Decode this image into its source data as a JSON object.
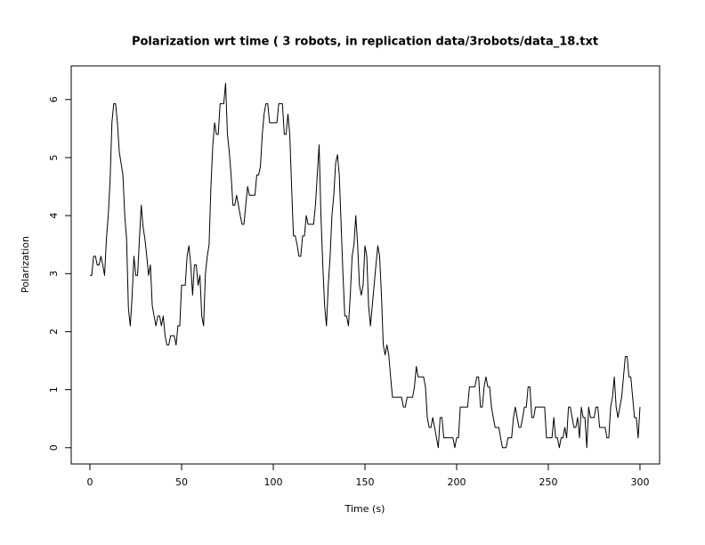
{
  "chart_data": {
    "type": "line",
    "title": "Polarization wrt time ( 3 robots, in replication  data/3robots/data_18.txt",
    "xlabel": "Time (s)",
    "ylabel": "Polarization",
    "x": [
      0,
      1,
      2,
      3,
      4,
      5,
      6,
      7,
      8,
      9,
      10,
      11,
      12,
      13,
      14,
      15,
      16,
      17,
      18,
      19,
      20,
      21,
      22,
      23,
      24,
      25,
      26,
      27,
      28,
      29,
      30,
      31,
      32,
      33,
      34,
      35,
      36,
      37,
      38,
      39,
      40,
      41,
      42,
      43,
      44,
      45,
      46,
      47,
      48,
      49,
      50,
      51,
      52,
      53,
      54,
      55,
      56,
      57,
      58,
      59,
      60,
      61,
      62,
      63,
      64,
      65,
      66,
      67,
      68,
      69,
      70,
      71,
      72,
      73,
      74,
      75,
      76,
      77,
      78,
      79,
      80,
      81,
      82,
      83,
      84,
      85,
      86,
      87,
      88,
      89,
      90,
      91,
      92,
      93,
      94,
      95,
      96,
      97,
      98,
      99,
      100,
      101,
      102,
      103,
      104,
      105,
      106,
      107,
      108,
      109,
      110,
      111,
      112,
      113,
      114,
      115,
      116,
      117,
      118,
      119,
      120,
      121,
      122,
      123,
      124,
      125,
      126,
      127,
      128,
      129,
      130,
      131,
      132,
      133,
      134,
      135,
      136,
      137,
      138,
      139,
      140,
      141,
      142,
      143,
      144,
      145,
      146,
      147,
      148,
      149,
      150,
      151,
      152,
      153,
      154,
      155,
      156,
      157,
      158,
      159,
      160,
      161,
      162,
      163,
      164,
      165,
      166,
      167,
      168,
      169,
      170,
      171,
      172,
      173,
      174,
      175,
      176,
      177,
      178,
      179,
      180,
      181,
      182,
      183,
      184,
      185,
      186,
      187,
      188,
      189,
      190,
      191,
      192,
      193,
      194,
      195,
      196,
      197,
      198,
      199,
      200,
      201,
      202,
      203,
      204,
      205,
      206,
      207,
      208,
      209,
      210,
      211,
      212,
      213,
      214,
      215,
      216,
      217,
      218,
      219,
      220,
      221,
      222,
      223,
      224,
      225,
      226,
      227,
      228,
      229,
      230,
      231,
      232,
      233,
      234,
      235,
      236,
      237,
      238,
      239,
      240,
      241,
      242,
      243,
      244,
      245,
      246,
      247,
      248,
      249,
      250,
      251,
      252,
      253,
      254,
      255,
      256,
      257,
      258,
      259,
      260,
      261,
      262,
      263,
      264,
      265,
      266,
      267,
      268,
      269,
      270,
      271,
      272,
      273,
      274,
      275,
      276,
      277,
      278,
      279,
      280,
      281,
      282,
      283,
      284,
      285,
      286,
      287,
      288,
      289,
      290,
      291,
      292,
      293,
      294,
      295,
      296,
      297,
      298,
      299,
      300
    ],
    "series": [
      {
        "color": "#000000",
        "values": [
          2.97,
          2.97,
          3.3,
          3.3,
          3.15,
          3.15,
          3.3,
          3.15,
          2.97,
          3.6,
          4.0,
          4.6,
          5.6,
          5.93,
          5.93,
          5.6,
          5.1,
          4.9,
          4.7,
          4.0,
          3.6,
          2.4,
          2.1,
          2.6,
          3.3,
          2.97,
          2.97,
          3.6,
          4.18,
          3.8,
          3.6,
          3.3,
          2.97,
          3.15,
          2.45,
          2.27,
          2.1,
          2.27,
          2.27,
          2.1,
          2.27,
          1.93,
          1.77,
          1.77,
          1.93,
          1.93,
          1.93,
          1.77,
          2.1,
          2.1,
          2.8,
          2.8,
          2.8,
          3.3,
          3.48,
          3.15,
          2.63,
          3.15,
          3.15,
          2.8,
          2.97,
          2.27,
          2.1,
          3.0,
          3.3,
          3.5,
          4.5,
          5.2,
          5.6,
          5.4,
          5.4,
          5.93,
          5.93,
          5.93,
          6.28,
          5.4,
          5.1,
          4.7,
          4.18,
          4.18,
          4.35,
          4.18,
          4.0,
          3.85,
          3.85,
          4.18,
          4.5,
          4.35,
          4.35,
          4.35,
          4.35,
          4.7,
          4.7,
          4.85,
          5.4,
          5.75,
          5.93,
          5.93,
          5.6,
          5.6,
          5.6,
          5.6,
          5.6,
          5.93,
          5.93,
          5.93,
          5.4,
          5.4,
          5.75,
          5.4,
          4.5,
          3.65,
          3.65,
          3.5,
          3.3,
          3.3,
          3.65,
          3.65,
          4.0,
          3.85,
          3.85,
          3.85,
          3.85,
          4.18,
          4.7,
          5.22,
          4.0,
          3.15,
          2.45,
          2.1,
          2.8,
          3.3,
          4.0,
          4.35,
          4.9,
          5.05,
          4.7,
          3.85,
          3.0,
          2.27,
          2.27,
          2.1,
          2.63,
          3.3,
          3.5,
          4.0,
          3.5,
          2.8,
          2.63,
          2.8,
          3.48,
          3.3,
          2.45,
          2.1,
          2.45,
          2.8,
          3.15,
          3.48,
          3.3,
          2.63,
          1.77,
          1.6,
          1.77,
          1.6,
          1.22,
          0.87,
          0.87,
          0.87,
          0.87,
          0.87,
          0.87,
          0.7,
          0.7,
          0.87,
          0.87,
          0.87,
          0.87,
          1.05,
          1.4,
          1.22,
          1.22,
          1.22,
          1.22,
          1.05,
          0.52,
          0.35,
          0.35,
          0.52,
          0.35,
          0.17,
          0,
          0.52,
          0.52,
          0.17,
          0.17,
          0.17,
          0.17,
          0.17,
          0.17,
          0,
          0.17,
          0.17,
          0.7,
          0.7,
          0.7,
          0.7,
          0.7,
          1.05,
          1.05,
          1.05,
          1.05,
          1.22,
          1.22,
          0.7,
          0.7,
          1.05,
          1.22,
          1.05,
          1.05,
          0.7,
          0.52,
          0.35,
          0.35,
          0.35,
          0.17,
          0,
          0,
          0,
          0.17,
          0.17,
          0.17,
          0.52,
          0.7,
          0.52,
          0.35,
          0.35,
          0.52,
          0.7,
          0.7,
          1.05,
          1.05,
          0.52,
          0.52,
          0.7,
          0.7,
          0.7,
          0.7,
          0.7,
          0.7,
          0.17,
          0.17,
          0.17,
          0.17,
          0.52,
          0.17,
          0.17,
          0,
          0.17,
          0.17,
          0.35,
          0.17,
          0.7,
          0.7,
          0.52,
          0.35,
          0.35,
          0.52,
          0.17,
          0.7,
          0.52,
          0.52,
          0,
          0.7,
          0.52,
          0.52,
          0.52,
          0.7,
          0.7,
          0.35,
          0.35,
          0.35,
          0.35,
          0.17,
          0.17,
          0.7,
          0.87,
          1.22,
          0.7,
          0.52,
          0.7,
          0.87,
          1.22,
          1.57,
          1.57,
          1.22,
          1.22,
          0.87,
          0.52,
          0.52,
          0.17,
          0.7
        ]
      }
    ],
    "xlim": [
      -10.2,
      310.7
    ],
    "xticks": [
      0,
      50,
      100,
      150,
      200,
      250,
      300
    ],
    "ylim": [
      -0.28,
      6.58
    ],
    "yticks": [
      0,
      1,
      2,
      3,
      4,
      5,
      6
    ]
  }
}
